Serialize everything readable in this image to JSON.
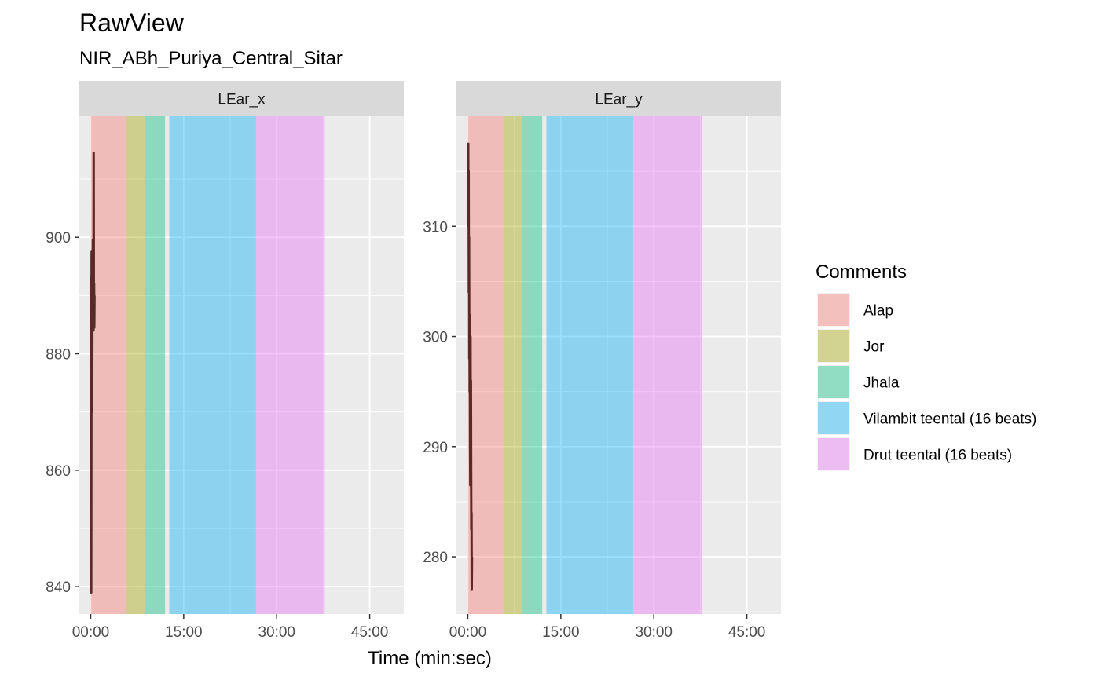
{
  "chart_data": {
    "type": "area",
    "title": "RawView",
    "subtitle": "NIR_ABh_Puriya_Central_Sitar",
    "xlabel": "Time (min:sec)",
    "x_ticks": [
      "00:00",
      "15:00",
      "30:00",
      "45:00"
    ],
    "x_tick_values_sec": [
      0,
      900,
      1800,
      2700
    ],
    "xlim_sec": [
      -110,
      3030
    ],
    "legend": {
      "title": "Comments",
      "placement": "right",
      "items": [
        {
          "label": "Alap",
          "color": "#F8766D"
        },
        {
          "label": "Jor",
          "color": "#A3A500"
        },
        {
          "label": "Jhala",
          "color": "#00BF7D"
        },
        {
          "label": "Vilambit teental (16 beats)",
          "color": "#00B0F6"
        },
        {
          "label": "Drut teental (16 beats)",
          "color": "#E76BF3"
        }
      ]
    },
    "sections": [
      {
        "label": "Alap",
        "start_sec": 0,
        "end_sec": 345,
        "color": "#F8766D"
      },
      {
        "label": "Jor",
        "start_sec": 345,
        "end_sec": 520,
        "color": "#A3A500"
      },
      {
        "label": "Jhala",
        "start_sec": 520,
        "end_sec": 720,
        "color": "#00BF7D"
      },
      {
        "label": "Vilambit teental (16 beats)",
        "start_sec": 760,
        "end_sec": 1600,
        "color": "#00B0F6"
      },
      {
        "label": "Drut teental (16 beats)",
        "start_sec": 1600,
        "end_sec": 2265,
        "color": "#E76BF3"
      }
    ],
    "grid": true,
    "panels": [
      {
        "strip": "LEar_x",
        "y_ticks": [
          840,
          860,
          880,
          900
        ],
        "ylim": [
          835.3,
          920.8
        ],
        "series": [
          {
            "t": 2,
            "v": 893.5
          },
          {
            "t": 3,
            "v": 872
          },
          {
            "t": 4,
            "v": 890
          },
          {
            "t": 5,
            "v": 839
          },
          {
            "t": 7,
            "v": 875
          },
          {
            "t": 9,
            "v": 897.5
          },
          {
            "t": 11,
            "v": 882
          },
          {
            "t": 13,
            "v": 889
          },
          {
            "t": 15,
            "v": 870
          },
          {
            "t": 17,
            "v": 894
          },
          {
            "t": 19,
            "v": 884
          },
          {
            "t": 21,
            "v": 899.5
          },
          {
            "t": 23,
            "v": 885
          },
          {
            "t": 25,
            "v": 896
          },
          {
            "t": 27,
            "v": 884
          },
          {
            "t": 29,
            "v": 914.5
          },
          {
            "t": 31,
            "v": 886
          },
          {
            "t": 33,
            "v": 892
          },
          {
            "t": 35,
            "v": 884.5
          },
          {
            "t": 37,
            "v": 890
          }
        ]
      },
      {
        "strip": "LEar_y",
        "y_ticks": [
          280,
          290,
          300,
          310
        ],
        "ylim": [
          274.8,
          320.0
        ],
        "series": [
          {
            "t": 2,
            "v": 312
          },
          {
            "t": 4,
            "v": 317.5
          },
          {
            "t": 6,
            "v": 310
          },
          {
            "t": 8,
            "v": 315
          },
          {
            "t": 10,
            "v": 304
          },
          {
            "t": 12,
            "v": 309
          },
          {
            "t": 14,
            "v": 298
          },
          {
            "t": 16,
            "v": 302
          },
          {
            "t": 18,
            "v": 295
          },
          {
            "t": 20,
            "v": 299
          },
          {
            "t": 22,
            "v": 290
          },
          {
            "t": 24,
            "v": 286.5
          },
          {
            "t": 26,
            "v": 300
          },
          {
            "t": 28,
            "v": 293
          },
          {
            "t": 30,
            "v": 296
          },
          {
            "t": 32,
            "v": 288
          },
          {
            "t": 34,
            "v": 282.5
          },
          {
            "t": 36,
            "v": 284
          },
          {
            "t": 38,
            "v": 277
          },
          {
            "t": 40,
            "v": 280
          }
        ]
      }
    ]
  }
}
